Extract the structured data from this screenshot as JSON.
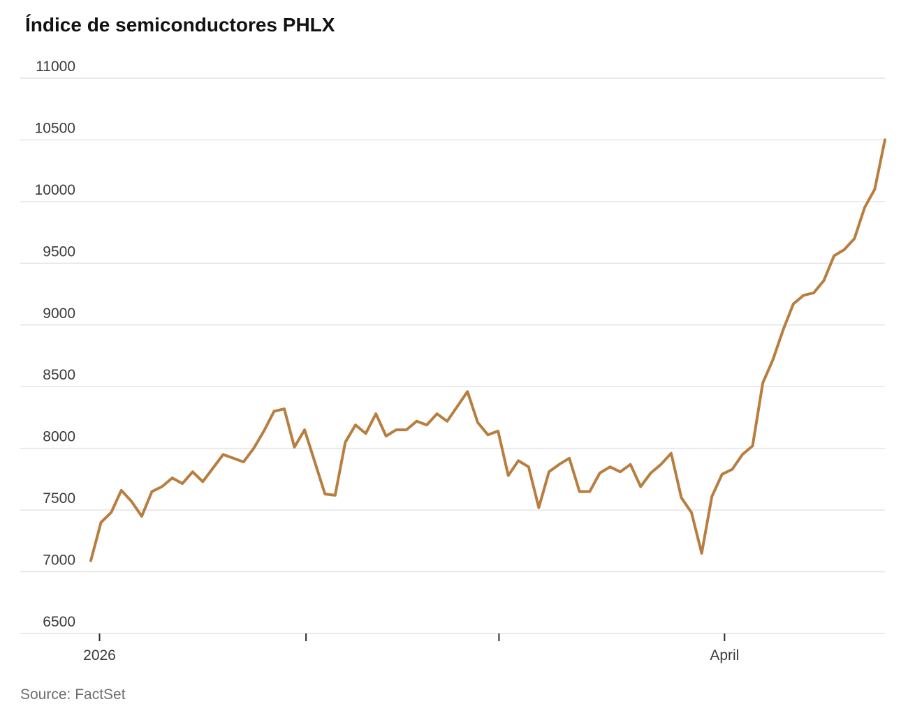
{
  "page": {
    "title": "Índice de semiconductores PHLX",
    "source": "Source: FactSet"
  },
  "chart_data": {
    "type": "line",
    "title": "Índice de semiconductores PHLX",
    "xlabel": "",
    "ylabel": "",
    "ylim": [
      6500,
      11000
    ],
    "y_ticks": [
      6500,
      7000,
      7500,
      8000,
      8500,
      9000,
      9500,
      10000,
      10500,
      11000
    ],
    "x_ticks": [
      {
        "pos": 0.011,
        "label": "2026"
      },
      {
        "pos": 0.271,
        "label": ""
      },
      {
        "pos": 0.514,
        "label": ""
      },
      {
        "pos": 0.798,
        "label": "April"
      }
    ],
    "grid": true,
    "legend": "none",
    "line_color": "#b87e40",
    "grid_color": "#e4e4e4",
    "tick_color": "#2a2a2a",
    "values": [
      7090,
      7400,
      7480,
      7660,
      7570,
      7450,
      7650,
      7690,
      7760,
      7715,
      7810,
      7730,
      7840,
      7950,
      7920,
      7890,
      8000,
      8140,
      8300,
      8320,
      8010,
      8150,
      7890,
      7630,
      7620,
      8050,
      8190,
      8120,
      8280,
      8100,
      8150,
      8150,
      8220,
      8190,
      8280,
      8220,
      8340,
      8460,
      8210,
      8110,
      8140,
      7780,
      7900,
      7850,
      7520,
      7810,
      7870,
      7920,
      7650,
      7650,
      7800,
      7850,
      7810,
      7870,
      7690,
      7800,
      7870,
      7960,
      7600,
      7480,
      7150,
      7610,
      7790,
      7830,
      7950,
      8020,
      8530,
      8720,
      8960,
      9170,
      9240,
      9260,
      9360,
      9560,
      9610,
      9700,
      9950,
      10100,
      10500
    ]
  }
}
